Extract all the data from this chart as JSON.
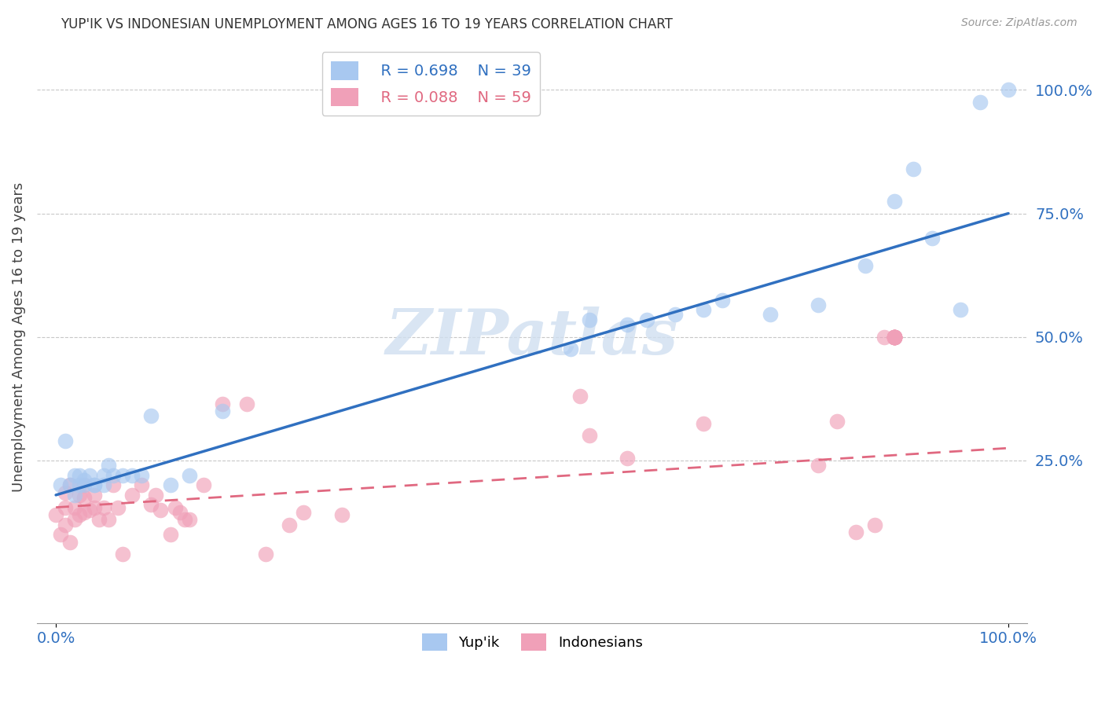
{
  "title": "YUP'IK VS INDONESIAN UNEMPLOYMENT AMONG AGES 16 TO 19 YEARS CORRELATION CHART",
  "source": "Source: ZipAtlas.com",
  "ylabel_label": "Unemployment Among Ages 16 to 19 years",
  "ytick_labels": [
    "100.0%",
    "75.0%",
    "50.0%",
    "25.0%"
  ],
  "ytick_values": [
    1.0,
    0.75,
    0.5,
    0.25
  ],
  "xlim": [
    -0.02,
    1.02
  ],
  "ylim": [
    -0.08,
    1.08
  ],
  "yupik_color": "#a8c8f0",
  "indonesian_color": "#f0a0b8",
  "yupik_line_color": "#3070c0",
  "indonesian_line_color": "#e06880",
  "background_color": "#ffffff",
  "grid_color": "#c8c8c8",
  "watermark_text": "ZIPatlas",
  "watermark_color": "#d0dff0",
  "legend_R_yupik": "R = 0.698",
  "legend_N_yupik": "N = 39",
  "legend_R_indonesian": "R = 0.088",
  "legend_N_indonesian": "N = 59",
  "yupik_line_x0": 0.0,
  "yupik_line_y0": 0.18,
  "yupik_line_x1": 1.0,
  "yupik_line_y1": 0.75,
  "indo_line_x0": 0.0,
  "indo_line_y0": 0.155,
  "indo_line_x1": 1.0,
  "indo_line_y1": 0.275,
  "yupik_x": [
    0.005,
    0.01,
    0.015,
    0.02,
    0.02,
    0.025,
    0.025,
    0.03,
    0.03,
    0.035,
    0.04,
    0.04,
    0.05,
    0.05,
    0.055,
    0.06,
    0.07,
    0.08,
    0.09,
    0.1,
    0.12,
    0.14,
    0.175,
    0.54,
    0.56,
    0.6,
    0.62,
    0.65,
    0.68,
    0.7,
    0.75,
    0.8,
    0.85,
    0.88,
    0.9,
    0.92,
    0.95,
    0.97,
    1.0
  ],
  "yupik_y": [
    0.2,
    0.29,
    0.2,
    0.18,
    0.22,
    0.2,
    0.22,
    0.2,
    0.21,
    0.22,
    0.2,
    0.2,
    0.2,
    0.22,
    0.24,
    0.22,
    0.22,
    0.22,
    0.22,
    0.34,
    0.2,
    0.22,
    0.35,
    0.475,
    0.535,
    0.525,
    0.535,
    0.545,
    0.555,
    0.575,
    0.545,
    0.565,
    0.645,
    0.775,
    0.84,
    0.7,
    0.555,
    0.975,
    1.0
  ],
  "indonesian_x": [
    0.0,
    0.005,
    0.01,
    0.01,
    0.01,
    0.015,
    0.015,
    0.02,
    0.02,
    0.025,
    0.025,
    0.03,
    0.03,
    0.03,
    0.035,
    0.04,
    0.04,
    0.045,
    0.05,
    0.055,
    0.06,
    0.065,
    0.07,
    0.08,
    0.09,
    0.1,
    0.105,
    0.11,
    0.12,
    0.125,
    0.13,
    0.135,
    0.14,
    0.155,
    0.175,
    0.2,
    0.22,
    0.245,
    0.26,
    0.3,
    0.55,
    0.56,
    0.6,
    0.68,
    0.8,
    0.82,
    0.84,
    0.86,
    0.87,
    0.88,
    0.88,
    0.88,
    0.88,
    0.88,
    0.88,
    0.88,
    0.88,
    0.88,
    0.88
  ],
  "indonesian_y": [
    0.14,
    0.1,
    0.12,
    0.155,
    0.185,
    0.2,
    0.085,
    0.13,
    0.155,
    0.14,
    0.18,
    0.145,
    0.175,
    0.2,
    0.15,
    0.155,
    0.18,
    0.13,
    0.155,
    0.13,
    0.2,
    0.155,
    0.06,
    0.18,
    0.2,
    0.16,
    0.18,
    0.15,
    0.1,
    0.155,
    0.145,
    0.13,
    0.13,
    0.2,
    0.365,
    0.365,
    0.06,
    0.12,
    0.145,
    0.14,
    0.38,
    0.3,
    0.255,
    0.325,
    0.24,
    0.33,
    0.105,
    0.12,
    0.5,
    0.5,
    0.5,
    0.5,
    0.5,
    0.5,
    0.5,
    0.5,
    0.5,
    0.5,
    0.5
  ]
}
